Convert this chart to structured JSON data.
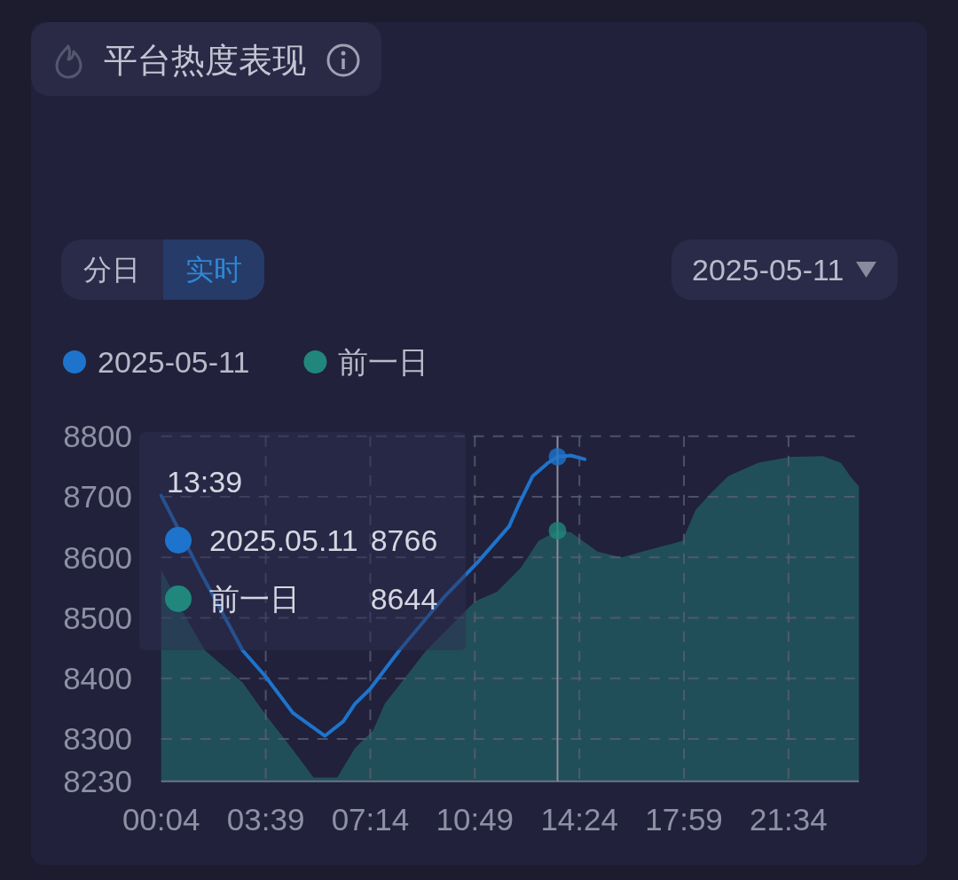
{
  "chart_data": {
    "type": "line",
    "title": "平台热度表现",
    "xlim": [
      0.0667,
      23.98
    ],
    "ylim": [
      8230,
      8800
    ],
    "xticks": [
      {
        "value": 0.0667,
        "label": "00:04"
      },
      {
        "value": 3.65,
        "label": "03:39"
      },
      {
        "value": 7.2333,
        "label": "07:14"
      },
      {
        "value": 10.8167,
        "label": "10:49"
      },
      {
        "value": 14.4,
        "label": "14:24"
      },
      {
        "value": 17.9833,
        "label": "17:59"
      },
      {
        "value": 21.5667,
        "label": "21:34"
      }
    ],
    "yticks": [
      8230,
      8300,
      8400,
      8500,
      8600,
      8700,
      8800
    ],
    "grid": true,
    "legend": "top left",
    "series": [
      {
        "name": "2025-05-11",
        "color": "#1e74cc",
        "x": [
          0.0667,
          1.44,
          2.86,
          3.63,
          4.58,
          5.68,
          6.31,
          6.71,
          7.22,
          8.23,
          9.76,
          10.92,
          11.99,
          12.35,
          12.8,
          13.3,
          13.65,
          14.1,
          14.58
        ],
        "values": [
          8702,
          8573,
          8446,
          8404,
          8343,
          8305,
          8329,
          8358,
          8382,
          8446,
          8534,
          8592,
          8651,
          8690,
          8734,
          8755,
          8766,
          8768,
          8762
        ]
      },
      {
        "name": "前一日",
        "type": "area",
        "color": "#21877c",
        "x": [
          0.0667,
          0.8,
          1.57,
          2.86,
          3.63,
          4.58,
          5.29,
          6.1,
          6.71,
          7.33,
          7.73,
          9.15,
          10.82,
          11.58,
          12.4,
          13.0,
          13.65,
          14.12,
          15.03,
          15.85,
          16.76,
          17.93,
          18.38,
          18.89,
          19.5,
          20.52,
          21.63,
          22.75,
          23.36,
          23.71,
          23.98
        ],
        "values": [
          8580,
          8510,
          8446,
          8393,
          8341,
          8282,
          8236,
          8236,
          8285,
          8314,
          8358,
          8446,
          8527,
          8543,
          8583,
          8627,
          8644,
          8641,
          8609,
          8600,
          8612,
          8627,
          8678,
          8705,
          8734,
          8756,
          8766,
          8767,
          8756,
          8732,
          8717
        ]
      }
    ],
    "ref_lines": [
      {
        "axis": "x",
        "value": 13.65,
        "color": "#8b8d9c"
      }
    ],
    "annotations": [
      "13:39",
      "2025.05.11",
      "8766",
      "前一日",
      "8644",
      "分日",
      "实时",
      "2025-05-11"
    ]
  }
}
